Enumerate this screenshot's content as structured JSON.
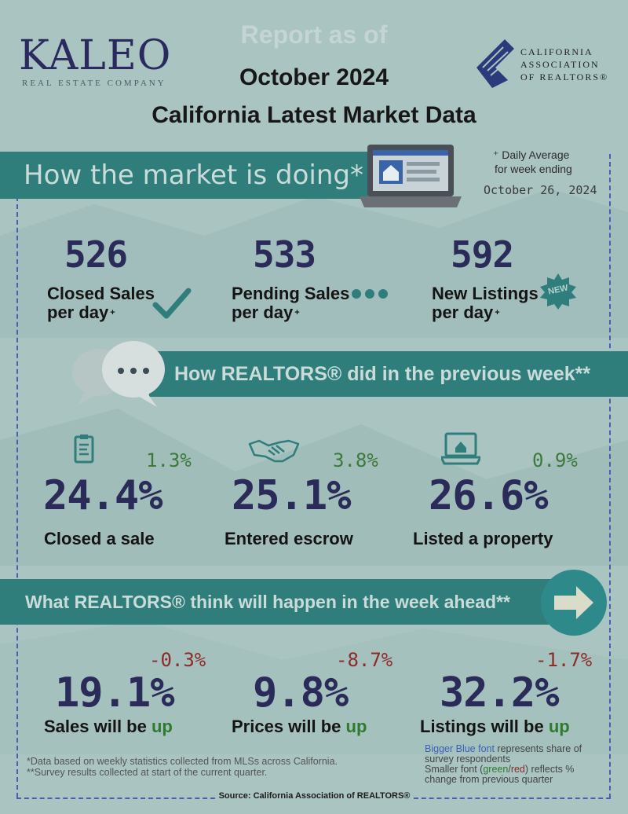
{
  "brand": {
    "logo": "KALEO",
    "tagline": "REAL ESTATE COMPANY",
    "car_logo_text": [
      "CALIFORNIA",
      "ASSOCIATION",
      "OF REALTORS®"
    ]
  },
  "header": {
    "report_as_of": "Report as of",
    "month": "October 2024",
    "title": "California Latest Market Data"
  },
  "market": {
    "heading": "How the market is doing*",
    "note_line1": "⁺ Daily Average",
    "note_line2": "for week ending",
    "week_ending": "October 26, 2024",
    "stats": [
      {
        "value": "526",
        "label1": "Closed Sales",
        "label2": "per day",
        "sup": "+",
        "icon": "checkmark-icon"
      },
      {
        "value": "533",
        "label1": "Pending Sales",
        "label2": "per day",
        "sup": "+",
        "icon": "dots-icon"
      },
      {
        "value": "592",
        "label1": "New Listings",
        "label2": "per day",
        "sup": "+",
        "icon": "new-badge-icon",
        "badge": "NEW"
      }
    ]
  },
  "previous": {
    "heading": "How REALTORS® did in the previous week**",
    "stats": [
      {
        "value": "24.4%",
        "change": "1.3%",
        "label": "Closed a sale",
        "icon": "clipboard-icon"
      },
      {
        "value": "25.1%",
        "change": "3.8%",
        "label": "Entered escrow",
        "icon": "handshake-icon"
      },
      {
        "value": "26.6%",
        "change": "0.9%",
        "label": "Listed a property",
        "icon": "laptop-house-icon"
      }
    ]
  },
  "ahead": {
    "heading": "What REALTORS® think will happen in the week ahead**",
    "stats": [
      {
        "value": "19.1%",
        "change": "-0.3%",
        "label": "Sales will be",
        "dir": "up"
      },
      {
        "value": "9.8%",
        "change": "-8.7%",
        "label": "Prices will be",
        "dir": "up"
      },
      {
        "value": "32.2%",
        "change": "-1.7%",
        "label": "Listings will be",
        "dir": "up"
      }
    ]
  },
  "footnotes": {
    "data_note": "*Data based on weekly statistics collected from MLSs across California.",
    "survey_note": "**Survey results collected at start of the current quarter.",
    "legend_blue": "Bigger Blue font",
    "legend_blue_rest": " represents share of survey respondents",
    "legend_small_pre": "Smaller font (",
    "legend_green": "green",
    "legend_slash": "/",
    "legend_red": "red",
    "legend_small_post": ") reflects % change from previous quarter",
    "source": "Source: California Association of REALTORS®"
  },
  "colors": {
    "band": "#2f7e7c",
    "big_value": "#2b2b5a",
    "positive": "#3d7a3a",
    "negative": "#8d2b2b",
    "dashed_border": "#4a5fb0"
  }
}
